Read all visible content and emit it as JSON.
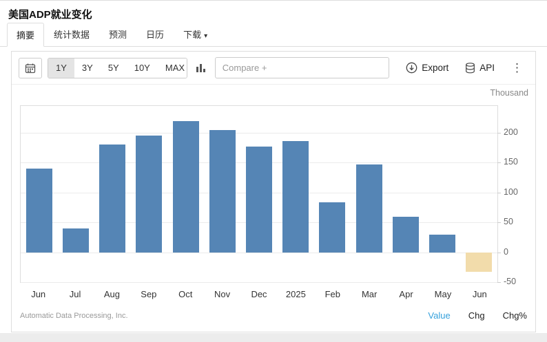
{
  "header": {
    "title": "美国ADP就业变化"
  },
  "tabs": [
    {
      "label": "摘要",
      "active": true
    },
    {
      "label": "统计数据",
      "active": false
    },
    {
      "label": "预测",
      "active": false
    },
    {
      "label": "日历",
      "active": false
    },
    {
      "label": "下载",
      "active": false,
      "has_dropdown": true
    }
  ],
  "toolbar": {
    "ranges": [
      {
        "label": "1Y",
        "active": true
      },
      {
        "label": "3Y",
        "active": false
      },
      {
        "label": "5Y",
        "active": false
      },
      {
        "label": "10Y",
        "active": false
      },
      {
        "label": "MAX",
        "active": false
      }
    ],
    "compare_placeholder": "Compare +",
    "export_label": "Export",
    "api_label": "API"
  },
  "icons": {
    "kebab": "⋮",
    "caret_down": "▾"
  },
  "chart_data": {
    "type": "bar",
    "title": "美国ADP就业变化",
    "unit_label": "Thousand",
    "categories": [
      "Jun",
      "Jul",
      "Aug",
      "Sep",
      "Oct",
      "Nov",
      "Dec",
      "2025",
      "Feb",
      "Mar",
      "Apr",
      "May",
      "Jun"
    ],
    "values": [
      140,
      40,
      180,
      195,
      220,
      205,
      177,
      186,
      84,
      147,
      60,
      29,
      -33
    ],
    "xlabel": "",
    "ylabel": "Thousand",
    "ylim": [
      -50,
      245
    ],
    "yticks": [
      200,
      150,
      100,
      50,
      0,
      -50
    ],
    "bar_color": "#5585b5",
    "negative_bar_color": "#f2dcab",
    "grid": true,
    "legend": "none"
  },
  "footer": {
    "source": "Automatic Data Processing, Inc.",
    "links": [
      {
        "label": "Value",
        "active": true
      },
      {
        "label": "Chg",
        "active": false
      },
      {
        "label": "Chg%",
        "active": false
      }
    ]
  }
}
